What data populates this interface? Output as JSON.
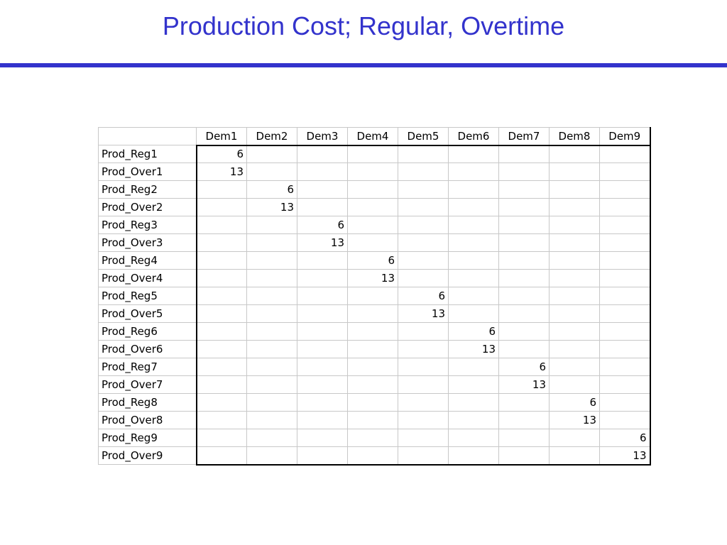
{
  "slide": {
    "title": "Production Cost; Regular, Overtime"
  },
  "table": {
    "columns": [
      "Dem1",
      "Dem2",
      "Dem3",
      "Dem4",
      "Dem5",
      "Dem6",
      "Dem7",
      "Dem8",
      "Dem9"
    ],
    "rows": [
      {
        "label": "Prod_Reg1",
        "cells": [
          "6",
          "",
          "",
          "",
          "",
          "",
          "",
          "",
          ""
        ]
      },
      {
        "label": "Prod_Over1",
        "cells": [
          "13",
          "",
          "",
          "",
          "",
          "",
          "",
          "",
          ""
        ]
      },
      {
        "label": "Prod_Reg2",
        "cells": [
          "",
          "6",
          "",
          "",
          "",
          "",
          "",
          "",
          ""
        ]
      },
      {
        "label": "Prod_Over2",
        "cells": [
          "",
          "13",
          "",
          "",
          "",
          "",
          "",
          "",
          ""
        ]
      },
      {
        "label": "Prod_Reg3",
        "cells": [
          "",
          "",
          "6",
          "",
          "",
          "",
          "",
          "",
          ""
        ]
      },
      {
        "label": "Prod_Over3",
        "cells": [
          "",
          "",
          "13",
          "",
          "",
          "",
          "",
          "",
          ""
        ]
      },
      {
        "label": "Prod_Reg4",
        "cells": [
          "",
          "",
          "",
          "6",
          "",
          "",
          "",
          "",
          ""
        ]
      },
      {
        "label": "Prod_Over4",
        "cells": [
          "",
          "",
          "",
          "13",
          "",
          "",
          "",
          "",
          ""
        ]
      },
      {
        "label": "Prod_Reg5",
        "cells": [
          "",
          "",
          "",
          "",
          "6",
          "",
          "",
          "",
          ""
        ]
      },
      {
        "label": "Prod_Over5",
        "cells": [
          "",
          "",
          "",
          "",
          "13",
          "",
          "",
          "",
          ""
        ]
      },
      {
        "label": "Prod_Reg6",
        "cells": [
          "",
          "",
          "",
          "",
          "",
          "6",
          "",
          "",
          ""
        ]
      },
      {
        "label": "Prod_Over6",
        "cells": [
          "",
          "",
          "",
          "",
          "",
          "13",
          "",
          "",
          ""
        ]
      },
      {
        "label": "Prod_Reg7",
        "cells": [
          "",
          "",
          "",
          "",
          "",
          "",
          "6",
          "",
          ""
        ]
      },
      {
        "label": "Prod_Over7",
        "cells": [
          "",
          "",
          "",
          "",
          "",
          "",
          "13",
          "",
          ""
        ]
      },
      {
        "label": "Prod_Reg8",
        "cells": [
          "",
          "",
          "",
          "",
          "",
          "",
          "",
          "6",
          ""
        ]
      },
      {
        "label": "Prod_Over8",
        "cells": [
          "",
          "",
          "",
          "",
          "",
          "",
          "",
          "13",
          ""
        ]
      },
      {
        "label": "Prod_Reg9",
        "cells": [
          "",
          "",
          "",
          "",
          "",
          "",
          "",
          "",
          "6"
        ]
      },
      {
        "label": "Prod_Over9",
        "cells": [
          "",
          "",
          "",
          "",
          "",
          "",
          "",
          "",
          "13"
        ]
      }
    ]
  },
  "colors": {
    "title": "#3333cc",
    "rule": "#3333cc",
    "grid_line": "#c8c8c8",
    "block_border": "#000000"
  }
}
